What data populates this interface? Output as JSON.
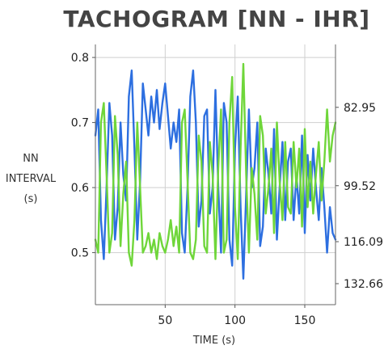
{
  "chart_data": {
    "type": "line",
    "title": "TACHOGRAM [NN - IHR]",
    "xlabel": "TIME (s)",
    "ylabel_lines": [
      "NN",
      "INTERVAL",
      "(s)"
    ],
    "xlim": [
      0,
      172
    ],
    "ylim": [
      0.42,
      0.82
    ],
    "y2lim": [
      142.86,
      73.17
    ],
    "x_ticks": [
      50,
      100,
      150
    ],
    "y_ticks": [
      0.5,
      0.6,
      0.7,
      0.8
    ],
    "y_tick_labels": [
      "0.5",
      "0.6",
      "0.7",
      "0.8"
    ],
    "y2_ticks": [
      82.95,
      99.52,
      116.09,
      132.66
    ],
    "y2_tick_labels": [
      "82.95",
      "99.52",
      "116.09",
      "132.66"
    ],
    "grid": true,
    "series": [
      {
        "axis": "left",
        "color": "#2d6fe0",
        "x": [
          0,
          2,
          4,
          6,
          8,
          10,
          12,
          14,
          16,
          18,
          20,
          22,
          24,
          26,
          28,
          30,
          32,
          34,
          36,
          38,
          40,
          42,
          44,
          46,
          48,
          50,
          52,
          54,
          56,
          58,
          60,
          62,
          64,
          66,
          68,
          70,
          72,
          74,
          76,
          78,
          80,
          82,
          84,
          86,
          88,
          90,
          92,
          94,
          96,
          98,
          100,
          102,
          104,
          106,
          108,
          110,
          112,
          114,
          116,
          118,
          120,
          122,
          124,
          126,
          128,
          130,
          132,
          134,
          136,
          138,
          140,
          142,
          144,
          146,
          148,
          150,
          152,
          154,
          156,
          158,
          160,
          162,
          164,
          166,
          168,
          170,
          172
        ],
        "y": [
          0.68,
          0.72,
          0.55,
          0.49,
          0.6,
          0.73,
          0.68,
          0.52,
          0.57,
          0.7,
          0.62,
          0.58,
          0.74,
          0.78,
          0.66,
          0.52,
          0.61,
          0.76,
          0.72,
          0.68,
          0.74,
          0.7,
          0.75,
          0.69,
          0.73,
          0.76,
          0.71,
          0.66,
          0.7,
          0.67,
          0.72,
          0.53,
          0.5,
          0.6,
          0.74,
          0.78,
          0.7,
          0.54,
          0.58,
          0.71,
          0.72,
          0.56,
          0.6,
          0.75,
          0.6,
          0.5,
          0.73,
          0.7,
          0.52,
          0.48,
          0.66,
          0.74,
          0.57,
          0.46,
          0.59,
          0.72,
          0.6,
          0.63,
          0.7,
          0.51,
          0.54,
          0.66,
          0.62,
          0.56,
          0.69,
          0.52,
          0.6,
          0.67,
          0.55,
          0.64,
          0.66,
          0.55,
          0.62,
          0.56,
          0.68,
          0.53,
          0.65,
          0.58,
          0.66,
          0.6,
          0.55,
          0.63,
          0.57,
          0.5,
          0.57,
          0.53,
          0.52
        ]
      },
      {
        "axis": "left",
        "color": "#6fd63a",
        "x": [
          0,
          2,
          4,
          6,
          8,
          10,
          12,
          14,
          16,
          18,
          20,
          22,
          24,
          26,
          28,
          30,
          32,
          34,
          36,
          38,
          40,
          42,
          44,
          46,
          48,
          50,
          52,
          54,
          56,
          58,
          60,
          62,
          64,
          66,
          68,
          70,
          72,
          74,
          76,
          78,
          80,
          82,
          84,
          86,
          88,
          90,
          92,
          94,
          96,
          98,
          100,
          102,
          104,
          106,
          108,
          110,
          112,
          114,
          116,
          118,
          120,
          122,
          124,
          126,
          128,
          130,
          132,
          134,
          136,
          138,
          140,
          142,
          144,
          146,
          148,
          150,
          152,
          154,
          156,
          158,
          160,
          162,
          164,
          166,
          168,
          170,
          172
        ],
        "y": [
          0.52,
          0.5,
          0.7,
          0.73,
          0.62,
          0.5,
          0.53,
          0.71,
          0.65,
          0.51,
          0.59,
          0.64,
          0.5,
          0.48,
          0.55,
          0.7,
          0.6,
          0.5,
          0.51,
          0.53,
          0.5,
          0.52,
          0.49,
          0.53,
          0.51,
          0.5,
          0.52,
          0.55,
          0.51,
          0.54,
          0.5,
          0.7,
          0.72,
          0.61,
          0.5,
          0.49,
          0.52,
          0.68,
          0.64,
          0.51,
          0.5,
          0.67,
          0.62,
          0.49,
          0.63,
          0.72,
          0.5,
          0.52,
          0.7,
          0.77,
          0.57,
          0.49,
          0.66,
          0.79,
          0.62,
          0.5,
          0.63,
          0.59,
          0.52,
          0.71,
          0.68,
          0.56,
          0.6,
          0.66,
          0.53,
          0.7,
          0.61,
          0.55,
          0.67,
          0.57,
          0.56,
          0.67,
          0.6,
          0.66,
          0.54,
          0.69,
          0.57,
          0.64,
          0.56,
          0.62,
          0.67,
          0.58,
          0.64,
          0.72,
          0.64,
          0.68,
          0.7
        ]
      }
    ]
  }
}
